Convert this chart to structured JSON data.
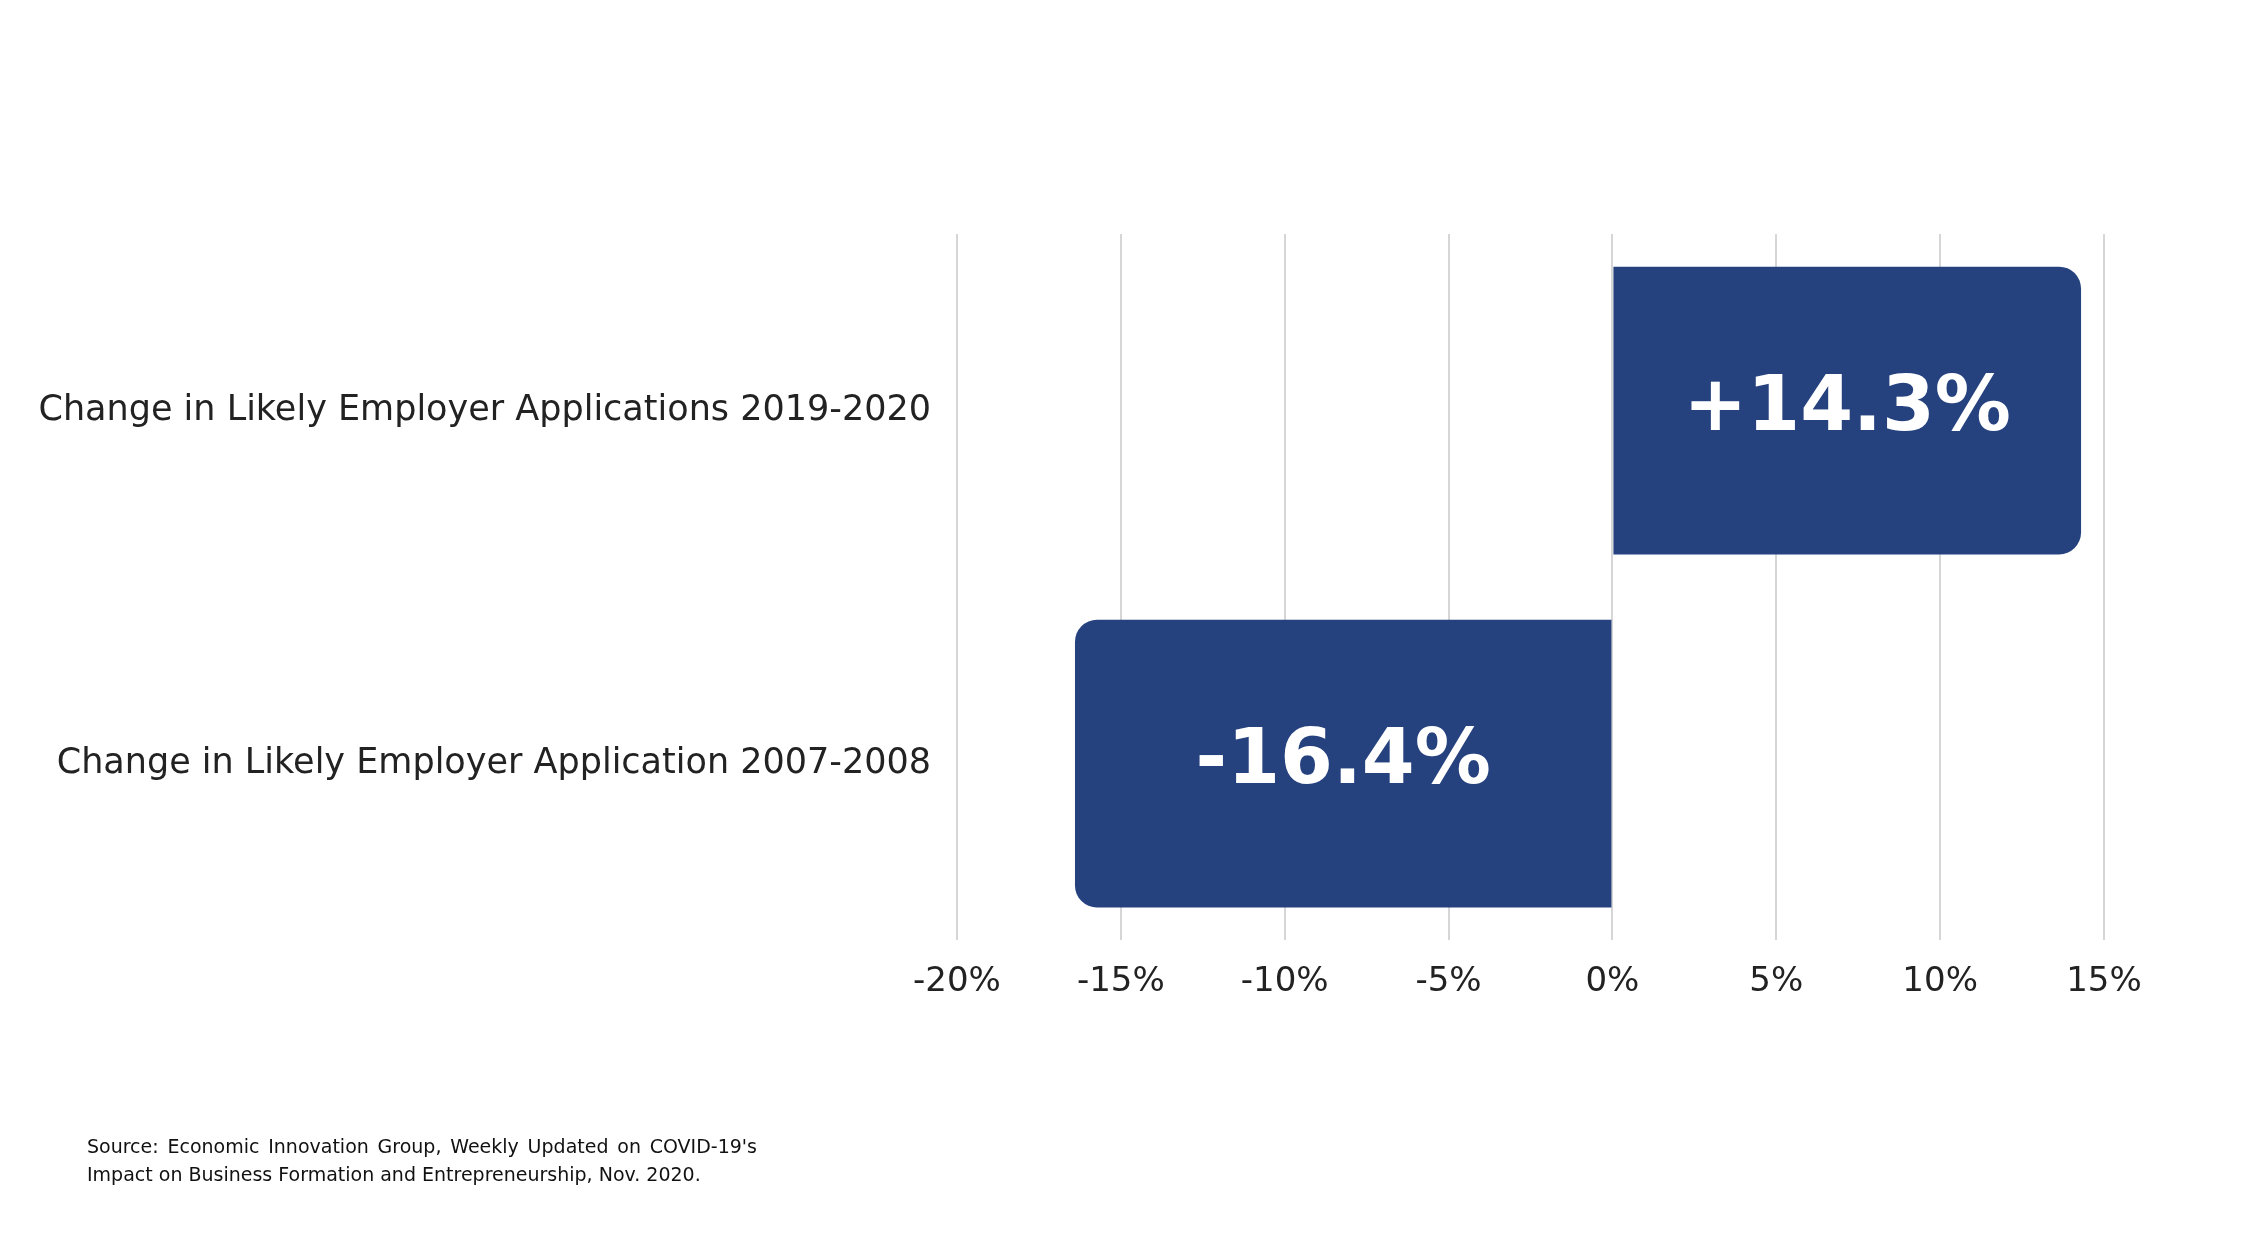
{
  "chart_data": {
    "type": "bar",
    "orientation": "horizontal",
    "categories": [
      "Change in Likely Employer Applications 2019-2020",
      "Change in Likely Employer Application 2007-2008"
    ],
    "values": [
      14.3,
      -16.4
    ],
    "value_labels": [
      "+14.3%",
      "-16.4%"
    ],
    "color": "#25427f",
    "xlim": [
      -20,
      15
    ],
    "xticks": [
      {
        "value": -20,
        "label": "-20%"
      },
      {
        "value": -15,
        "label": "-15%"
      },
      {
        "value": -10,
        "label": "-10%"
      },
      {
        "value": -5,
        "label": "-5%"
      },
      {
        "value": 0,
        "label": "0%"
      },
      {
        "value": 5,
        "label": "5%"
      },
      {
        "value": 10,
        "label": "10%"
      },
      {
        "value": 15,
        "label": "15%"
      }
    ],
    "grid": "x",
    "annotations": [
      "Source: Economic Innovation Group, Weekly Updated on COVID-19's Impact on Business Formation and Entrepreneurship, Nov. 2020."
    ]
  }
}
